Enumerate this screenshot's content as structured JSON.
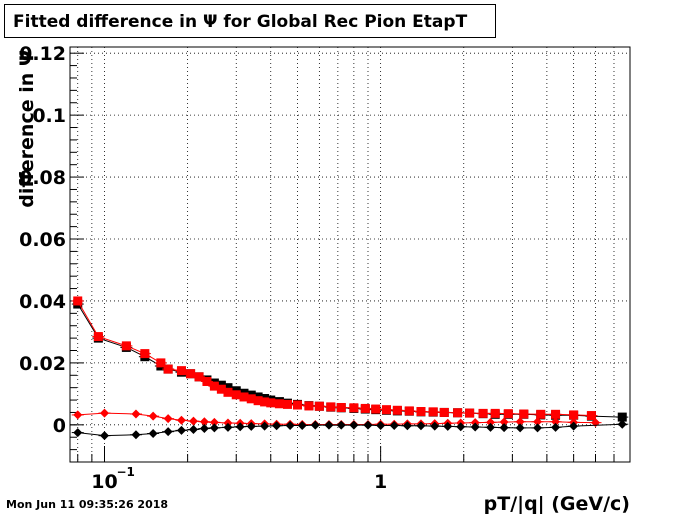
{
  "title": "Fitted difference in  Ψ  for Global Rec Pion EtapT",
  "timestamp": "Mon Jun 11 09:35:26 2018",
  "chart_data": {
    "type": "scatter",
    "title": "Fitted difference in  Ψ  for Global Rec Pion EtapT",
    "xlabel": "pT/|q| (GeV/c)",
    "ylabel": "difference in  Ψ",
    "xscale": "log",
    "xlim": [
      0.075,
      8.0
    ],
    "ylim": [
      -0.012,
      0.122
    ],
    "yticks": [
      0,
      0.02,
      0.04,
      0.06,
      0.08,
      0.1,
      0.12
    ],
    "ytick_labels": [
      "0",
      "0.02",
      "0.04",
      "0.06",
      "0.08",
      "0.1",
      "0.12"
    ],
    "xtick_major": [
      0.1,
      1
    ],
    "xtick_labels": [
      "10",
      "1"
    ],
    "xtick_exponents": [
      "−1",
      ""
    ],
    "grid": true,
    "series": [
      {
        "marker": "square",
        "color": "#000000",
        "x": [
          0.08,
          0.095,
          0.12,
          0.14,
          0.16,
          0.17,
          0.19,
          0.205,
          0.22,
          0.235,
          0.25,
          0.265,
          0.28,
          0.3,
          0.32,
          0.34,
          0.36,
          0.38,
          0.4,
          0.43,
          0.46,
          0.5,
          0.55,
          0.6,
          0.66,
          0.72,
          0.8,
          0.88,
          0.96,
          1.05,
          1.15,
          1.27,
          1.4,
          1.55,
          1.7,
          1.9,
          2.1,
          2.35,
          2.6,
          2.9,
          3.3,
          3.8,
          4.3,
          5.0,
          5.8,
          7.5
        ],
        "y": [
          0.039,
          0.028,
          0.025,
          0.022,
          0.019,
          0.018,
          0.017,
          0.0165,
          0.0155,
          0.0145,
          0.0135,
          0.0128,
          0.012,
          0.011,
          0.0102,
          0.0096,
          0.009,
          0.0085,
          0.008,
          0.0075,
          0.007,
          0.0066,
          0.0062,
          0.006,
          0.0057,
          0.0055,
          0.0053,
          0.0051,
          0.0049,
          0.0047,
          0.0045,
          0.0044,
          0.0042,
          0.0041,
          0.004,
          0.0039,
          0.0038,
          0.0036,
          0.0034,
          0.0034,
          0.0034,
          0.0032,
          0.0031,
          0.0031,
          0.0028,
          0.0025
        ]
      },
      {
        "marker": "square",
        "color": "#ff0000",
        "x": [
          0.08,
          0.095,
          0.12,
          0.14,
          0.16,
          0.17,
          0.19,
          0.205,
          0.22,
          0.235,
          0.25,
          0.265,
          0.28,
          0.3,
          0.32,
          0.34,
          0.36,
          0.38,
          0.4,
          0.43,
          0.46,
          0.5,
          0.55,
          0.6,
          0.66,
          0.72,
          0.8,
          0.88,
          0.96,
          1.05,
          1.15,
          1.27,
          1.4,
          1.55,
          1.7,
          1.9,
          2.1,
          2.35,
          2.6,
          2.9,
          3.3,
          3.8,
          4.3,
          5.0,
          5.8
        ],
        "y": [
          0.04,
          0.0285,
          0.0255,
          0.023,
          0.02,
          0.018,
          0.0175,
          0.0165,
          0.0155,
          0.014,
          0.0125,
          0.0115,
          0.0105,
          0.0097,
          0.009,
          0.0084,
          0.0078,
          0.0074,
          0.0071,
          0.0068,
          0.0066,
          0.0064,
          0.0061,
          0.006,
          0.0058,
          0.0056,
          0.0055,
          0.0053,
          0.0051,
          0.0049,
          0.0047,
          0.0045,
          0.0043,
          0.0042,
          0.004,
          0.0039,
          0.0038,
          0.0037,
          0.0037,
          0.0036,
          0.0035,
          0.0034,
          0.0034,
          0.0032,
          0.003
        ]
      },
      {
        "marker": "diamond",
        "color": "#ff0000",
        "x": [
          0.08,
          0.1,
          0.13,
          0.15,
          0.17,
          0.19,
          0.21,
          0.23,
          0.25,
          0.28,
          0.31,
          0.34,
          0.38,
          0.42,
          0.47,
          0.52,
          0.58,
          0.65,
          0.72,
          0.8,
          0.9,
          1.0,
          1.12,
          1.25,
          1.4,
          1.57,
          1.75,
          1.95,
          2.2,
          2.5,
          2.8,
          3.2,
          3.7,
          4.3,
          5.0,
          6.0
        ],
        "y": [
          0.0032,
          0.0038,
          0.0035,
          0.0028,
          0.002,
          0.0015,
          0.0012,
          0.001,
          0.0008,
          0.0006,
          0.0005,
          0.0004,
          0.0003,
          0.0002,
          0.0002,
          0.0001,
          0.0001,
          0.0001,
          0.0001,
          0.0001,
          0.0001,
          0.0002,
          0.0002,
          0.0003,
          0.0003,
          0.0004,
          0.0005,
          0.0006,
          0.0007,
          0.0008,
          0.0009,
          0.001,
          0.001,
          0.001,
          0.0008,
          0.0007
        ]
      },
      {
        "marker": "diamond",
        "color": "#000000",
        "x": [
          0.08,
          0.1,
          0.13,
          0.15,
          0.17,
          0.19,
          0.21,
          0.23,
          0.25,
          0.28,
          0.31,
          0.34,
          0.38,
          0.42,
          0.47,
          0.52,
          0.58,
          0.65,
          0.72,
          0.8,
          0.9,
          1.0,
          1.12,
          1.25,
          1.4,
          1.57,
          1.75,
          1.95,
          2.2,
          2.5,
          2.8,
          3.2,
          3.7,
          4.3,
          5.0,
          7.5
        ],
        "y": [
          -0.0025,
          -0.0035,
          -0.0032,
          -0.0028,
          -0.0022,
          -0.0018,
          -0.0015,
          -0.0012,
          -0.001,
          -0.0008,
          -0.0006,
          -0.0005,
          -0.0004,
          -0.0003,
          -0.0002,
          -0.0002,
          -0.0001,
          -0.0001,
          -0.0001,
          -0.0001,
          -0.0001,
          -0.0002,
          -0.0002,
          -0.0003,
          -0.0003,
          -0.0004,
          -0.0005,
          -0.0006,
          -0.0007,
          -0.0008,
          -0.0009,
          -0.001,
          -0.001,
          -0.0008,
          -0.0004,
          0.0002
        ]
      }
    ]
  }
}
